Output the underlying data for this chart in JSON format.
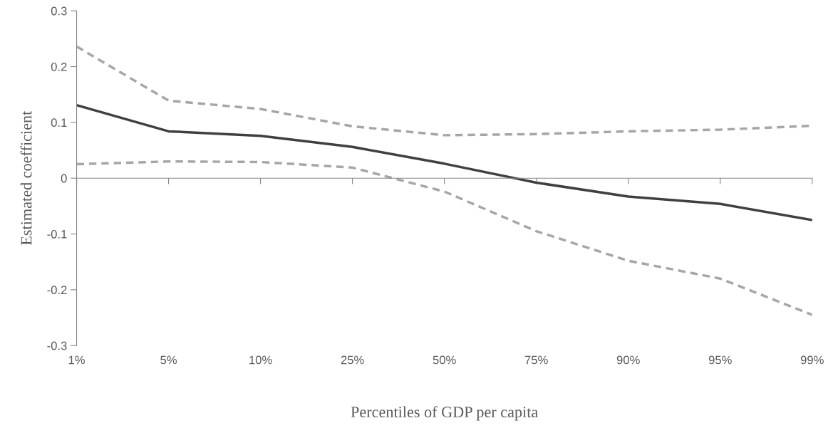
{
  "chart_data": {
    "type": "line",
    "xlabel": "Percentiles of GDP per capita",
    "ylabel": "Estimated coefficient",
    "categories": [
      "1%",
      "5%",
      "10%",
      "25%",
      "50%",
      "75%",
      "90%",
      "95%",
      "99%"
    ],
    "ylim": [
      -0.3,
      0.3
    ],
    "yticks": [
      {
        "value": -0.3,
        "label": "-0.3"
      },
      {
        "value": -0.2,
        "label": "-0.2"
      },
      {
        "value": -0.1,
        "label": "-0.1"
      },
      0,
      0.1,
      0.2,
      0.3
    ],
    "legend": false,
    "marker": "none",
    "series": [
      {
        "color": "#404040",
        "line_style": "solid",
        "values": [
          0.131,
          0.084,
          0.076,
          0.056,
          0.026,
          -0.008,
          -0.033,
          -0.046,
          -0.075
        ]
      },
      {
        "color": "#a6a6a6",
        "line_style": "dashed",
        "values": [
          0.236,
          0.139,
          0.124,
          0.093,
          0.077,
          0.079,
          0.084,
          0.087,
          0.094
        ]
      },
      {
        "color": "#a6a6a6",
        "line_style": "dashed",
        "values": [
          0.025,
          0.03,
          0.029,
          0.019,
          -0.024,
          -0.095,
          -0.148,
          -0.18,
          -0.245
        ]
      }
    ]
  }
}
